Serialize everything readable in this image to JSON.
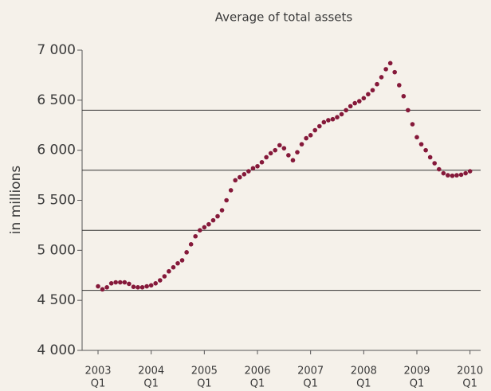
{
  "chart_data": {
    "type": "scatter",
    "title": "Average of total assets",
    "y_label": "in millions",
    "x": [
      2003,
      2003.083,
      2003.167,
      2003.25,
      2003.333,
      2003.417,
      2003.5,
      2003.583,
      2003.667,
      2003.75,
      2003.833,
      2003.917,
      2004,
      2004.083,
      2004.167,
      2004.25,
      2004.333,
      2004.417,
      2004.5,
      2004.583,
      2004.667,
      2004.75,
      2004.833,
      2004.917,
      2005,
      2005.083,
      2005.167,
      2005.25,
      2005.333,
      2005.417,
      2005.5,
      2005.583,
      2005.667,
      2005.75,
      2005.833,
      2005.917,
      2006,
      2006.083,
      2006.167,
      2006.25,
      2006.333,
      2006.417,
      2006.5,
      2006.583,
      2006.667,
      2006.75,
      2006.833,
      2006.917,
      2007,
      2007.083,
      2007.167,
      2007.25,
      2007.333,
      2007.417,
      2007.5,
      2007.583,
      2007.667,
      2007.75,
      2007.833,
      2007.917,
      2008,
      2008.083,
      2008.167,
      2008.25,
      2008.333,
      2008.417,
      2008.5,
      2008.583,
      2008.667,
      2008.75,
      2008.833,
      2008.917,
      2009,
      2009.083,
      2009.167,
      2009.25,
      2009.333,
      2009.417,
      2009.5,
      2009.583,
      2009.667,
      2009.75,
      2009.833,
      2009.917,
      2010
    ],
    "series": [
      {
        "color": "#85193a",
        "values": [
          4640,
          4610,
          4630,
          4670,
          4680,
          4680,
          4680,
          4665,
          4635,
          4630,
          4630,
          4640,
          4650,
          4670,
          4700,
          4740,
          4790,
          4830,
          4870,
          4900,
          4980,
          5060,
          5140,
          5200,
          5230,
          5260,
          5300,
          5340,
          5400,
          5500,
          5600,
          5700,
          5730,
          5760,
          5790,
          5820,
          5840,
          5880,
          5930,
          5970,
          6000,
          6050,
          6020,
          5950,
          5900,
          5980,
          6060,
          6120,
          6150,
          6200,
          6240,
          6280,
          6300,
          6310,
          6330,
          6360,
          6400,
          6440,
          6470,
          6490,
          6520,
          6560,
          6600,
          6660,
          6730,
          6810,
          6870,
          6780,
          6650,
          6540,
          6400,
          6260,
          6130,
          6060,
          6000,
          5930,
          5870,
          5810,
          5770,
          5750,
          5745,
          5750,
          5755,
          5770,
          5790
        ]
      }
    ],
    "xlim": [
      2002.7,
      2010.2
    ],
    "xticks": [
      {
        "value": 2003,
        "label": "2003",
        "sublabel": "Q1"
      },
      {
        "value": 2004,
        "label": "2004",
        "sublabel": "Q1"
      },
      {
        "value": 2005,
        "label": "2005",
        "sublabel": "Q1"
      },
      {
        "value": 2006,
        "label": "2006",
        "sublabel": "Q1"
      },
      {
        "value": 2007,
        "label": "2007",
        "sublabel": "Q1"
      },
      {
        "value": 2008,
        "label": "2008",
        "sublabel": "Q1"
      },
      {
        "value": 2009,
        "label": "2009",
        "sublabel": "Q1"
      },
      {
        "value": 2010,
        "label": "2010",
        "sublabel": "Q1"
      }
    ],
    "ylim": [
      4000,
      7000
    ],
    "yticks": [
      {
        "value": 4000,
        "label": "4 000"
      },
      {
        "value": 4500,
        "label": "4 500"
      },
      {
        "value": 5000,
        "label": "5 000"
      },
      {
        "value": 5500,
        "label": "5 500"
      },
      {
        "value": 6000,
        "label": "6 000"
      },
      {
        "value": 6500,
        "label": "6 500"
      },
      {
        "value": 7000,
        "label": "7 000"
      }
    ],
    "ygrid": [
      4600,
      5200,
      5800,
      6400
    ]
  }
}
